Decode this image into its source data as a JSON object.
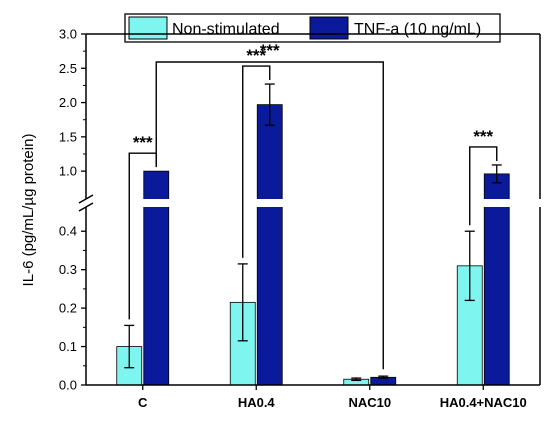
{
  "chart_data": {
    "type": "bar",
    "categories": [
      "C",
      "HA0.4",
      "NAC10",
      "HA0.4+NAC10"
    ],
    "series": [
      {
        "name": "Non-stimulated",
        "color": "#7ff5f0",
        "values": [
          0.1,
          0.215,
          0.015,
          0.31
        ],
        "errors": [
          0.055,
          0.1,
          0.003,
          0.09
        ]
      },
      {
        "name": "TNF-a (10 ng/mL)",
        "color": "#0a1a9b",
        "values": [
          1.0,
          1.97,
          0.02,
          0.96
        ],
        "errors": [
          0.0,
          0.3,
          0.003,
          0.13
        ]
      }
    ],
    "ylabel": "IL-6 (pg/mL/µg protein)",
    "xlabel": "",
    "y_axis_break": {
      "lower_range": [
        0,
        0.45
      ],
      "upper_range": [
        0.9,
        3.0
      ]
    },
    "lower_ticks": [
      "0.0",
      "0.1",
      "0.2",
      "0.3",
      "0.4"
    ],
    "lower_tick_values": [
      0,
      0.1,
      0.2,
      0.3,
      0.4
    ],
    "upper_ticks": [
      "1.0",
      "1.5",
      "2.0",
      "2.5",
      "3.0"
    ],
    "upper_tick_values": [
      1.0,
      1.5,
      2.0,
      2.5,
      3.0
    ],
    "legend_position": "top-center",
    "significance": [
      {
        "label": "***",
        "type": "within",
        "category": 0
      },
      {
        "label": "***",
        "type": "within",
        "category": 1
      },
      {
        "label": "***",
        "type": "within",
        "category": 3
      },
      {
        "label": "***",
        "type": "between",
        "from": 0,
        "to": 2
      }
    ]
  }
}
